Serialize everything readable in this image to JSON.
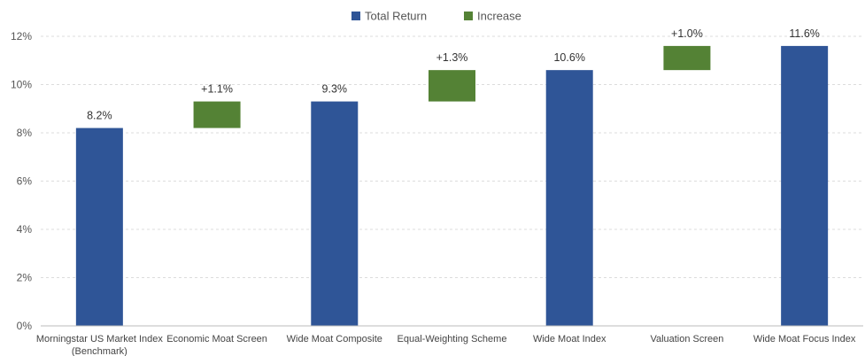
{
  "chart_data": {
    "type": "bar",
    "subtype": "waterfall",
    "categories": [
      "Morningstar US Market Index (Benchmark)",
      "Economic Moat Screen",
      "Wide Moat Composite",
      "Equal-Weighting Scheme",
      "Wide Moat Index",
      "Valuation Screen",
      "Wide Moat Focus Index"
    ],
    "series": [
      {
        "name": "Total Return",
        "color": "#2f5597",
        "bars": [
          {
            "category_index": 0,
            "low": 0,
            "high": 8.2,
            "label": "8.2%"
          },
          {
            "category_index": 2,
            "low": 0,
            "high": 9.3,
            "label": "9.3%"
          },
          {
            "category_index": 4,
            "low": 0,
            "high": 10.6,
            "label": "10.6%"
          },
          {
            "category_index": 6,
            "low": 0,
            "high": 11.6,
            "label": "11.6%"
          }
        ]
      },
      {
        "name": "Increase",
        "color": "#548235",
        "bars": [
          {
            "category_index": 1,
            "low": 8.2,
            "high": 9.3,
            "label": "+1.1%"
          },
          {
            "category_index": 3,
            "low": 9.3,
            "high": 10.6,
            "label": "+1.3%"
          },
          {
            "category_index": 5,
            "low": 10.6,
            "high": 11.6,
            "label": "+1.0%"
          }
        ]
      }
    ],
    "y_ticks": [
      "0%",
      "2%",
      "4%",
      "6%",
      "8%",
      "10%",
      "12%"
    ],
    "ylim": [
      0,
      12
    ],
    "grid": true,
    "legend_position": "top-center",
    "title": "",
    "xlabel": "",
    "ylabel": ""
  }
}
